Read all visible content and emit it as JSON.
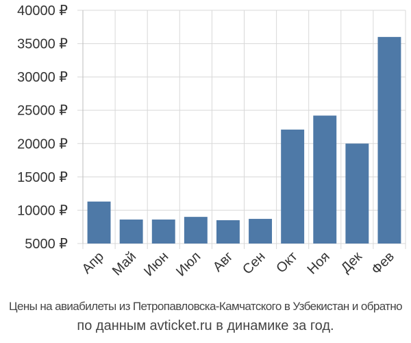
{
  "chart_data": {
    "type": "bar",
    "categories": [
      "Апр",
      "Май",
      "Июн",
      "Июл",
      "Авг",
      "Сен",
      "Окт",
      "Ноя",
      "Дек",
      "Фев"
    ],
    "values": [
      11300,
      8600,
      8600,
      9000,
      8500,
      8700,
      22100,
      24200,
      20000,
      36000
    ],
    "yticks": [
      5000,
      10000,
      15000,
      20000,
      25000,
      30000,
      35000,
      40000
    ],
    "ytick_labels": [
      "5000 ₽",
      "10000 ₽",
      "15000 ₽",
      "20000 ₽",
      "25000 ₽",
      "30000 ₽",
      "35000 ₽",
      "40000 ₽"
    ],
    "ylim": [
      5000,
      40000
    ],
    "bar_color": "#4e79a7",
    "grid_color": "#d8d8d8",
    "grid": true
  },
  "caption": {
    "line1": "Цены на авиабилеты из Петропавловска-Камчатского в Узбекистан и обратно",
    "line2": "по данным avticket.ru в динамике за год."
  }
}
